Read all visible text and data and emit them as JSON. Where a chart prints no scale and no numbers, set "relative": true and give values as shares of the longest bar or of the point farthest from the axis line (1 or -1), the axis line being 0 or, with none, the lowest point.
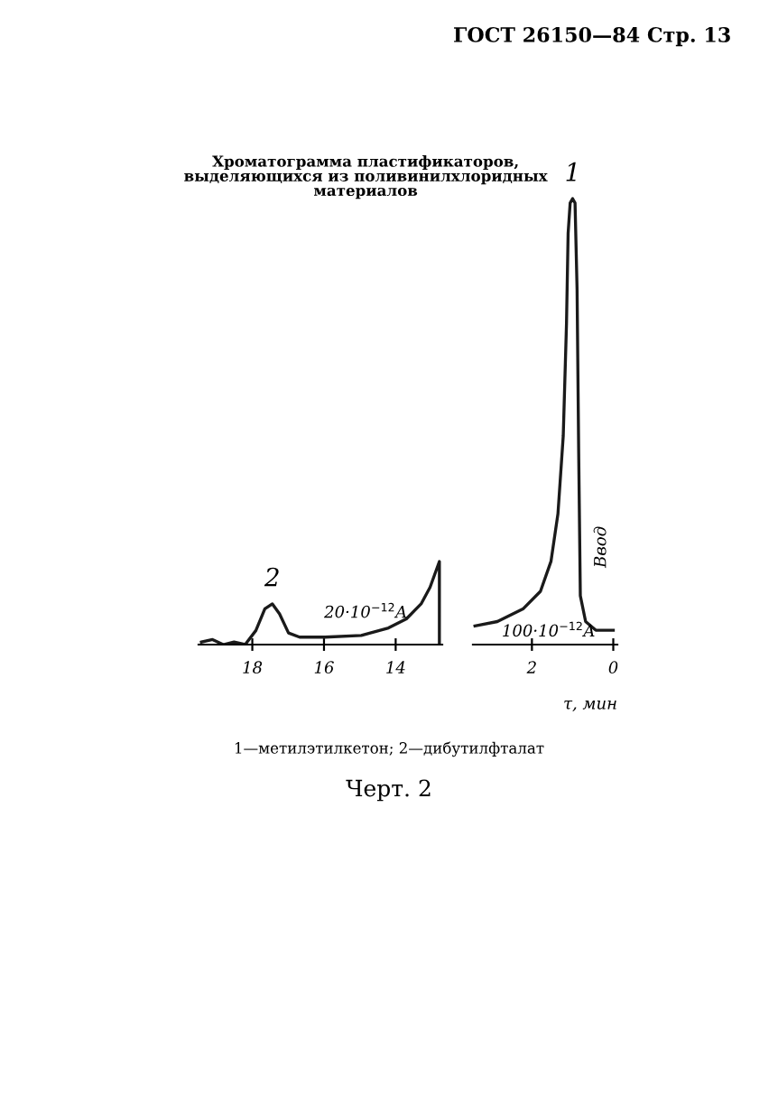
{
  "chart_data": [
    {
      "type": "line",
      "relative": true,
      "title": "Хроматограмма пластификаторов,\nвыделяющихся из поливинилхлоридных\nматериалов",
      "x": [
        19.42,
        19.11,
        18.81,
        18.51,
        18.2,
        17.9,
        17.65,
        17.44,
        17.24,
        16.99,
        16.68,
        15.97,
        14.96,
        14.2,
        13.7,
        13.29,
        13.04,
        12.78,
        12.78
      ],
      "series": [
        {
          "color": "#1a1a1a",
          "values": [
            0.03,
            0.06,
            0,
            0.03,
            0,
            0.17,
            0.43,
            0.49,
            0.37,
            0.14,
            0.09,
            0.09,
            0.11,
            0.2,
            0.31,
            0.49,
            0.69,
            1.0,
            0
          ]
        }
      ],
      "xlim": [
        19.5,
        12.7
      ],
      "xticks": [
        18,
        16,
        14
      ],
      "annotations": [
        "ГОСТ 26150—84 Стр. 13",
        "20·10$^{−12}$A",
        "1—метилэтилкетон; 2—дибутилфталат",
        "Черт. 2",
        {
          "text": "2",
          "x": 17.44,
          "y": 0.49
        }
      ]
    },
    {
      "type": "line",
      "relative": true,
      "xlabel": "τ, мин",
      "x": [
        3.4,
        2.85,
        2.21,
        1.79,
        1.53,
        1.36,
        1.23,
        1.15,
        1.11,
        1.06,
        1.0,
        0.94,
        0.89,
        0.85,
        0.81,
        0.68,
        0.43,
        0
      ],
      "series": [
        {
          "color": "#1a1a1a",
          "values": [
            0.01,
            0.02,
            0.05,
            0.09,
            0.16,
            0.27,
            0.45,
            0.71,
            0.92,
            0.99,
            1.0,
            0.99,
            0.79,
            0.41,
            0.08,
            0.02,
            0,
            0
          ]
        }
      ],
      "xlim": [
        3.45,
        -0.1
      ],
      "xticks": [
        2,
        0
      ],
      "annotations": [
        "100·10$^{−12}$A",
        "Ввод",
        {
          "text": "1",
          "x": 1.0,
          "y": 1.0
        }
      ]
    }
  ]
}
